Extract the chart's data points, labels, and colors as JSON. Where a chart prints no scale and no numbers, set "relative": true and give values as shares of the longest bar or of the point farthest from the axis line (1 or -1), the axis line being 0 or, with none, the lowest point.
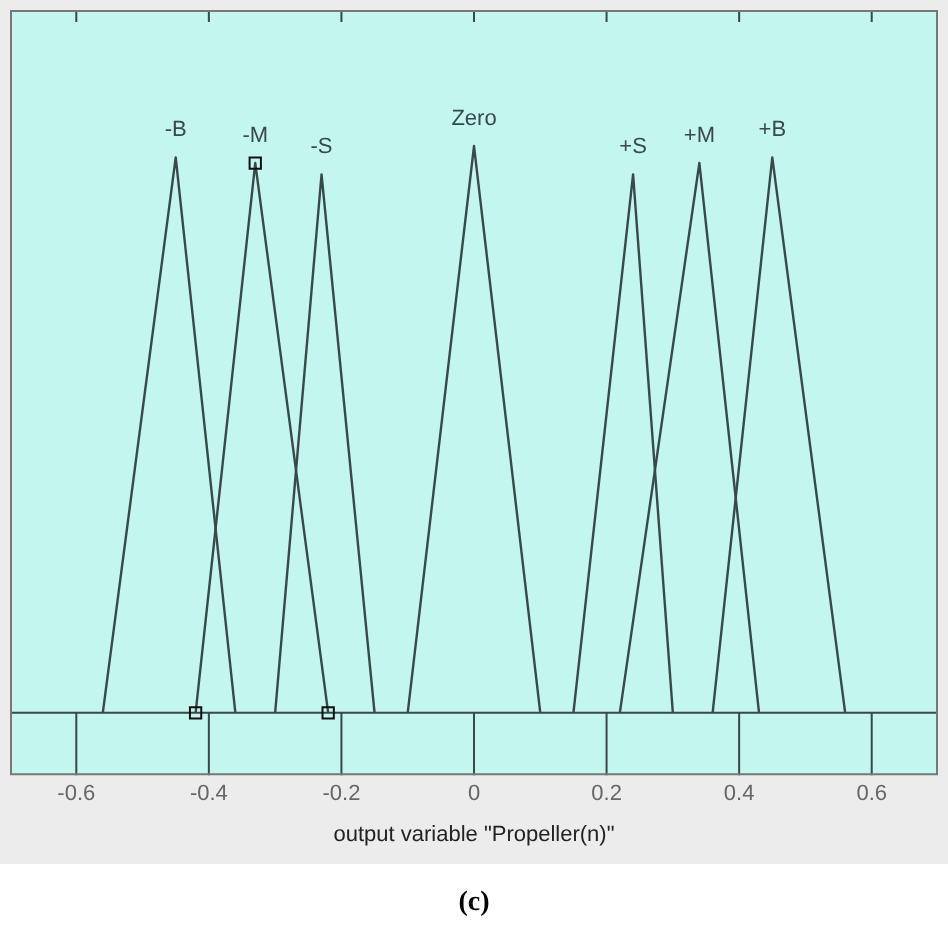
{
  "chart_data": {
    "type": "line",
    "relative": true,
    "xlabel": "output variable \"Propeller(n)\"",
    "annotations": [
      "(c)"
    ],
    "xlim": [
      -0.7,
      0.7
    ],
    "xticks": [
      -0.6,
      -0.4,
      -0.2,
      0,
      0.2,
      0.4,
      0.6
    ],
    "legend": false,
    "grid": false,
    "marker": "none",
    "line_style": "solid",
    "series": [
      {
        "name": "-B",
        "color": "#3a4848",
        "x": [
          -0.56,
          -0.45,
          -0.36
        ],
        "values": [
          0,
          0.98,
          0
        ]
      },
      {
        "name": "-M",
        "color": "#3a4848",
        "x": [
          -0.42,
          -0.33,
          -0.22
        ],
        "values": [
          0,
          0.97,
          0
        ],
        "marker": "square"
      },
      {
        "name": "-S",
        "color": "#3a4848",
        "x": [
          -0.3,
          -0.23,
          -0.15
        ],
        "values": [
          0,
          0.95,
          0
        ]
      },
      {
        "name": "Zero",
        "color": "#3a4848",
        "x": [
          -0.1,
          0,
          0.1
        ],
        "values": [
          0,
          1,
          0
        ]
      },
      {
        "name": "+S",
        "color": "#3a4848",
        "x": [
          0.15,
          0.24,
          0.3
        ],
        "values": [
          0,
          0.95,
          0
        ]
      },
      {
        "name": "+M",
        "color": "#3a4848",
        "x": [
          0.22,
          0.34,
          0.43
        ],
        "values": [
          0,
          0.97,
          0
        ]
      },
      {
        "name": "+B",
        "color": "#3a4848",
        "x": [
          0.36,
          0.45,
          0.56
        ],
        "values": [
          0,
          0.98,
          0
        ]
      }
    ]
  }
}
